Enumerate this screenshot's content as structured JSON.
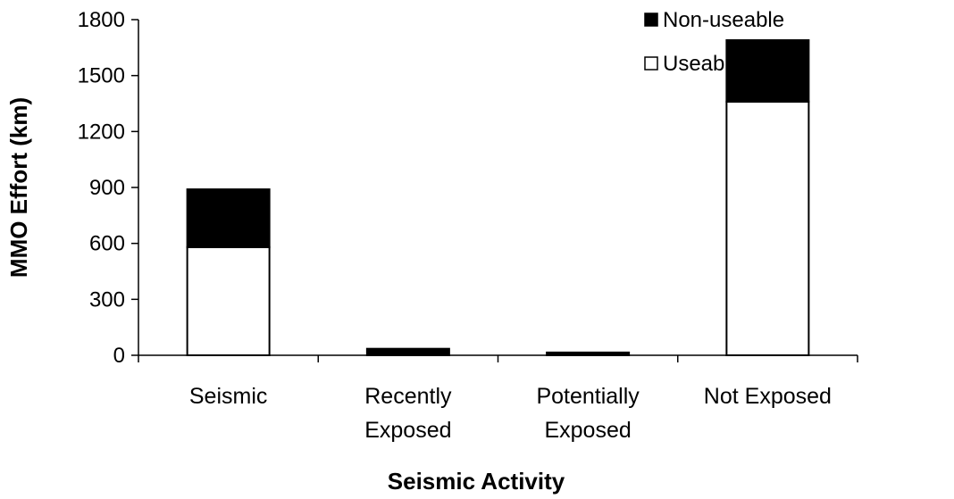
{
  "chart_data": {
    "type": "bar",
    "stacked": true,
    "categories": [
      [
        "Seismic"
      ],
      [
        "Recently",
        "Exposed"
      ],
      [
        "Potentially",
        "Exposed"
      ],
      [
        "Not Exposed"
      ]
    ],
    "series": [
      {
        "name": "Useable",
        "values": [
          580,
          0,
          0,
          1360
        ],
        "color": "#ffffff"
      },
      {
        "name": "Non-useable",
        "values": [
          310,
          35,
          15,
          330
        ],
        "color": "#000000"
      }
    ],
    "title": "",
    "xlabel": "Seismic Activity",
    "ylabel": "MMO Effort (km)",
    "ylim": [
      0,
      1800
    ],
    "yticks": [
      0,
      300,
      600,
      900,
      1200,
      1500,
      1800
    ],
    "grid": false,
    "legend_position": "top-right",
    "legend_order": [
      "Non-useable",
      "Useable"
    ]
  }
}
